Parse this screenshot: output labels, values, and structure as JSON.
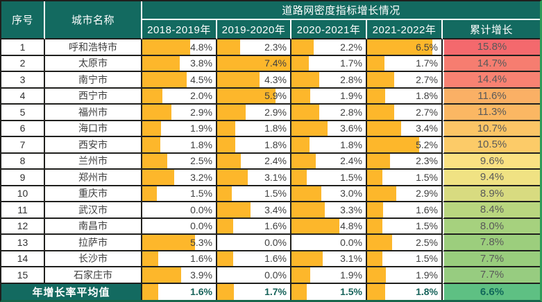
{
  "table": {
    "headers": {
      "sn": "序号",
      "city": "城市名称",
      "group": "道路网密度指标增长情况",
      "years": [
        "2018-2019年",
        "2019-2020年",
        "2020-2021年",
        "2021-2022年"
      ],
      "cumulative": "累计增长"
    },
    "bar_max": 7.4,
    "colors": {
      "header_bg": "#136A60",
      "bar": "#FDB72B",
      "grid_border": "#1F1F1D",
      "outer_right_border": "#2E9C58",
      "outer_bottom_border": "#17654B",
      "average_text": "#17635A",
      "scale_red": "#F4696D",
      "scale_yellow": "#FAE182",
      "scale_green": "#5EC083"
    },
    "rows": [
      {
        "sn": "1",
        "city": "呼和浩特市",
        "values": [
          "4.8%",
          "2.3%",
          "2.2%",
          "6.5%"
        ],
        "nums": [
          4.8,
          2.3,
          2.2,
          6.5
        ],
        "cumulative": "15.8%",
        "cum_num": 15.8,
        "cum_color": "#F4696D"
      },
      {
        "sn": "2",
        "city": "太原市",
        "values": [
          "3.8%",
          "7.4%",
          "1.7%",
          "1.7%"
        ],
        "nums": [
          3.8,
          7.4,
          1.7,
          1.7
        ],
        "cumulative": "14.7%",
        "cum_num": 14.7,
        "cum_color": "#F67D70"
      },
      {
        "sn": "3",
        "city": "南宁市",
        "values": [
          "4.5%",
          "4.3%",
          "2.8%",
          "2.7%"
        ],
        "nums": [
          4.5,
          4.3,
          2.8,
          2.7
        ],
        "cumulative": "14.4%",
        "cum_num": 14.4,
        "cum_color": "#F78272"
      },
      {
        "sn": "4",
        "city": "西宁市",
        "values": [
          "2.0%",
          "5.9%",
          "1.9%",
          "1.8%"
        ],
        "nums": [
          2.0,
          5.9,
          1.9,
          1.8
        ],
        "cumulative": "11.6%",
        "cum_num": 11.6,
        "cum_color": "#FAB065"
      },
      {
        "sn": "5",
        "city": "福州市",
        "values": [
          "2.9%",
          "2.9%",
          "2.8%",
          "2.7%"
        ],
        "nums": [
          2.9,
          2.9,
          2.8,
          2.7
        ],
        "cumulative": "11.3%",
        "cum_num": 11.3,
        "cum_color": "#FBB763"
      },
      {
        "sn": "6",
        "city": "海口市",
        "values": [
          "1.9%",
          "1.8%",
          "3.6%",
          "3.4%"
        ],
        "nums": [
          1.9,
          1.8,
          3.6,
          3.4
        ],
        "cumulative": "10.7%",
        "cum_num": 10.7,
        "cum_color": "#FCC566"
      },
      {
        "sn": "7",
        "city": "西安市",
        "values": [
          "1.8%",
          "1.8%",
          "1.8%",
          "5.2%"
        ],
        "nums": [
          1.8,
          1.8,
          1.8,
          5.2
        ],
        "cumulative": "10.5%",
        "cum_num": 10.5,
        "cum_color": "#FCCB68"
      },
      {
        "sn": "8",
        "city": "兰州市",
        "values": [
          "2.5%",
          "2.4%",
          "2.4%",
          "2.3%"
        ],
        "nums": [
          2.5,
          2.4,
          2.4,
          2.3
        ],
        "cumulative": "9.6%",
        "cum_num": 9.6,
        "cum_color": "#FAE182"
      },
      {
        "sn": "9",
        "city": "郑州市",
        "values": [
          "3.2%",
          "3.1%",
          "1.5%",
          "1.5%"
        ],
        "nums": [
          3.2,
          3.1,
          1.5,
          1.5
        ],
        "cumulative": "9.4%",
        "cum_num": 9.4,
        "cum_color": "#F0E283"
      },
      {
        "sn": "10",
        "city": "重庆市",
        "values": [
          "1.5%",
          "1.5%",
          "3.0%",
          "2.9%"
        ],
        "nums": [
          1.5,
          1.5,
          3.0,
          2.9
        ],
        "cumulative": "8.9%",
        "cum_num": 8.9,
        "cum_color": "#D8DB80"
      },
      {
        "sn": "11",
        "city": "武汉市",
        "values": [
          "0.0%",
          "3.4%",
          "3.3%",
          "1.6%"
        ],
        "nums": [
          0.0,
          3.4,
          3.3,
          1.6
        ],
        "cumulative": "8.4%",
        "cum_num": 8.4,
        "cum_color": "#B9D67F"
      },
      {
        "sn": "12",
        "city": "南昌市",
        "values": [
          "0.0%",
          "1.6%",
          "4.8%",
          "1.5%"
        ],
        "nums": [
          0.0,
          1.6,
          4.8,
          1.5
        ],
        "cumulative": "8.0%",
        "cum_num": 8.0,
        "cum_color": "#A6D17E"
      },
      {
        "sn": "13",
        "city": "拉萨市",
        "values": [
          "5.3%",
          "0.0%",
          "0.0%",
          "2.5%"
        ],
        "nums": [
          5.3,
          0.0,
          0.0,
          2.5
        ],
        "cumulative": "7.8%",
        "cum_num": 7.8,
        "cum_color": "#9CCE7D"
      },
      {
        "sn": "14",
        "city": "长沙市",
        "values": [
          "1.6%",
          "1.6%",
          "3.1%",
          "1.5%"
        ],
        "nums": [
          1.6,
          1.6,
          3.1,
          1.5
        ],
        "cumulative": "7.7%",
        "cum_num": 7.7,
        "cum_color": "#99CD7D"
      },
      {
        "sn": "15",
        "city": "石家庄市",
        "values": [
          "3.9%",
          "0.0%",
          "1.9%",
          "1.9%"
        ],
        "nums": [
          3.9,
          0.0,
          1.9,
          1.9
        ],
        "cumulative": "7.7%",
        "cum_num": 7.7,
        "cum_color": "#97CC80"
      }
    ],
    "average_row": {
      "label": "年增长率平均值",
      "values": [
        "1.6%",
        "1.7%",
        "1.5%",
        "1.8%"
      ],
      "nums": [
        1.6,
        1.7,
        1.5,
        1.8
      ],
      "cumulative": "6.6%",
      "cum_num": 6.6,
      "cum_color": "#5EC083"
    }
  },
  "chart_data": {
    "type": "table",
    "title": "道路网密度指标增长情况",
    "columns": [
      "序号",
      "城市名称",
      "2018-2019年",
      "2019-2020年",
      "2020-2021年",
      "2021-2022年",
      "累计增长"
    ],
    "units": "%",
    "bar_scale": {
      "min": 0,
      "max": 7.4
    },
    "color_scale": {
      "type": "red-yellow-green",
      "high": 15.8,
      "low": 6.6
    },
    "rows": [
      [
        1,
        "呼和浩特市",
        4.8,
        2.3,
        2.2,
        6.5,
        15.8
      ],
      [
        2,
        "太原市",
        3.8,
        7.4,
        1.7,
        1.7,
        14.7
      ],
      [
        3,
        "南宁市",
        4.5,
        4.3,
        2.8,
        2.7,
        14.4
      ],
      [
        4,
        "西宁市",
        2.0,
        5.9,
        1.9,
        1.8,
        11.6
      ],
      [
        5,
        "福州市",
        2.9,
        2.9,
        2.8,
        2.7,
        11.3
      ],
      [
        6,
        "海口市",
        1.9,
        1.8,
        3.6,
        3.4,
        10.7
      ],
      [
        7,
        "西安市",
        1.8,
        1.8,
        1.8,
        5.2,
        10.5
      ],
      [
        8,
        "兰州市",
        2.5,
        2.4,
        2.4,
        2.3,
        9.6
      ],
      [
        9,
        "郑州市",
        3.2,
        3.1,
        1.5,
        1.5,
        9.4
      ],
      [
        10,
        "重庆市",
        1.5,
        1.5,
        3.0,
        2.9,
        8.9
      ],
      [
        11,
        "武汉市",
        0.0,
        3.4,
        3.3,
        1.6,
        8.4
      ],
      [
        12,
        "南昌市",
        0.0,
        1.6,
        4.8,
        1.5,
        8.0
      ],
      [
        13,
        "拉萨市",
        5.3,
        0.0,
        0.0,
        2.5,
        7.8
      ],
      [
        14,
        "长沙市",
        1.6,
        1.6,
        3.1,
        1.5,
        7.7
      ],
      [
        15,
        "石家庄市",
        3.9,
        0.0,
        1.9,
        1.9,
        7.7
      ]
    ],
    "average_row": [
      "年增长率平均值",
      1.6,
      1.7,
      1.5,
      1.8,
      6.6
    ]
  }
}
